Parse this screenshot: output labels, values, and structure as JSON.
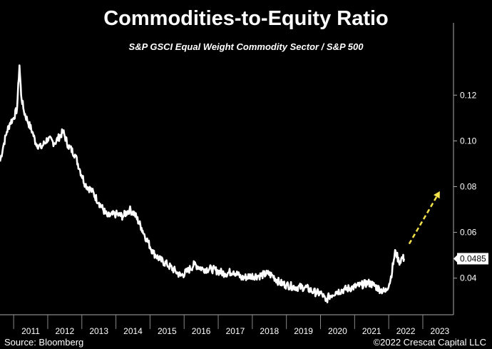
{
  "chart_data": {
    "type": "line",
    "title": "Commodities-to-Equity Ratio",
    "subtitle": "S&P GSCI Equal Weight Commodity Sector / S&P 500",
    "xlabel": "",
    "ylabel": "",
    "x_ticks": [
      "2011",
      "2012",
      "2013",
      "2014",
      "2015",
      "2016",
      "2017",
      "2018",
      "2019",
      "2020",
      "2021",
      "2022",
      "2023"
    ],
    "y_ticks": [
      "0.04",
      "0.06",
      "0.08",
      "0.10",
      "0.12"
    ],
    "xlim": [
      2010.6,
      2023.9
    ],
    "ylim": [
      0.024,
      0.136
    ],
    "last_value_label": "0.0485",
    "line_color": "#ffffff",
    "arrow_color": "#f3e14a",
    "series": [
      {
        "points": [
          [
            2010.6,
            0.091
          ],
          [
            2010.7,
            0.098
          ],
          [
            2010.8,
            0.104
          ],
          [
            2010.9,
            0.108
          ],
          [
            2011.0,
            0.11
          ],
          [
            2011.1,
            0.114
          ],
          [
            2011.17,
            0.133
          ],
          [
            2011.22,
            0.12
          ],
          [
            2011.3,
            0.113
          ],
          [
            2011.4,
            0.109
          ],
          [
            2011.55,
            0.104
          ],
          [
            2011.65,
            0.099
          ],
          [
            2011.8,
            0.097
          ],
          [
            2012.0,
            0.101
          ],
          [
            2012.2,
            0.099
          ],
          [
            2012.45,
            0.104
          ],
          [
            2012.6,
            0.098
          ],
          [
            2012.8,
            0.094
          ],
          [
            2012.95,
            0.087
          ],
          [
            2013.1,
            0.081
          ],
          [
            2013.3,
            0.078
          ],
          [
            2013.5,
            0.073
          ],
          [
            2013.75,
            0.067
          ],
          [
            2014.0,
            0.068
          ],
          [
            2014.2,
            0.067
          ],
          [
            2014.4,
            0.07
          ],
          [
            2014.55,
            0.068
          ],
          [
            2014.75,
            0.062
          ],
          [
            2014.9,
            0.057
          ],
          [
            2015.1,
            0.051
          ],
          [
            2015.3,
            0.048
          ],
          [
            2015.5,
            0.046
          ],
          [
            2015.75,
            0.043
          ],
          [
            2015.9,
            0.041
          ],
          [
            2016.1,
            0.043
          ],
          [
            2016.3,
            0.046
          ],
          [
            2016.55,
            0.044
          ],
          [
            2016.8,
            0.044
          ],
          [
            2017.0,
            0.043
          ],
          [
            2017.2,
            0.042
          ],
          [
            2017.45,
            0.043
          ],
          [
            2017.7,
            0.04
          ],
          [
            2017.95,
            0.041
          ],
          [
            2018.2,
            0.041
          ],
          [
            2018.45,
            0.042
          ],
          [
            2018.6,
            0.041
          ],
          [
            2018.8,
            0.038
          ],
          [
            2019.0,
            0.037
          ],
          [
            2019.3,
            0.036
          ],
          [
            2019.55,
            0.036
          ],
          [
            2019.8,
            0.034
          ],
          [
            2020.05,
            0.033
          ],
          [
            2020.15,
            0.03
          ],
          [
            2020.25,
            0.032
          ],
          [
            2020.45,
            0.034
          ],
          [
            2020.7,
            0.035
          ],
          [
            2020.95,
            0.036
          ],
          [
            2021.2,
            0.037
          ],
          [
            2021.4,
            0.038
          ],
          [
            2021.55,
            0.037
          ],
          [
            2021.75,
            0.035
          ],
          [
            2021.9,
            0.034
          ],
          [
            2022.05,
            0.039
          ],
          [
            2022.15,
            0.048
          ],
          [
            2022.2,
            0.052
          ],
          [
            2022.3,
            0.047
          ],
          [
            2022.4,
            0.049
          ],
          [
            2022.45,
            0.0485
          ]
        ]
      }
    ],
    "annotation_arrow": {
      "from": [
        2022.6,
        0.055
      ],
      "to": [
        2023.5,
        0.078
      ]
    }
  },
  "footer": {
    "source": "Source: Bloomberg",
    "copyright": "©2022 Crescat Capital LLC"
  }
}
